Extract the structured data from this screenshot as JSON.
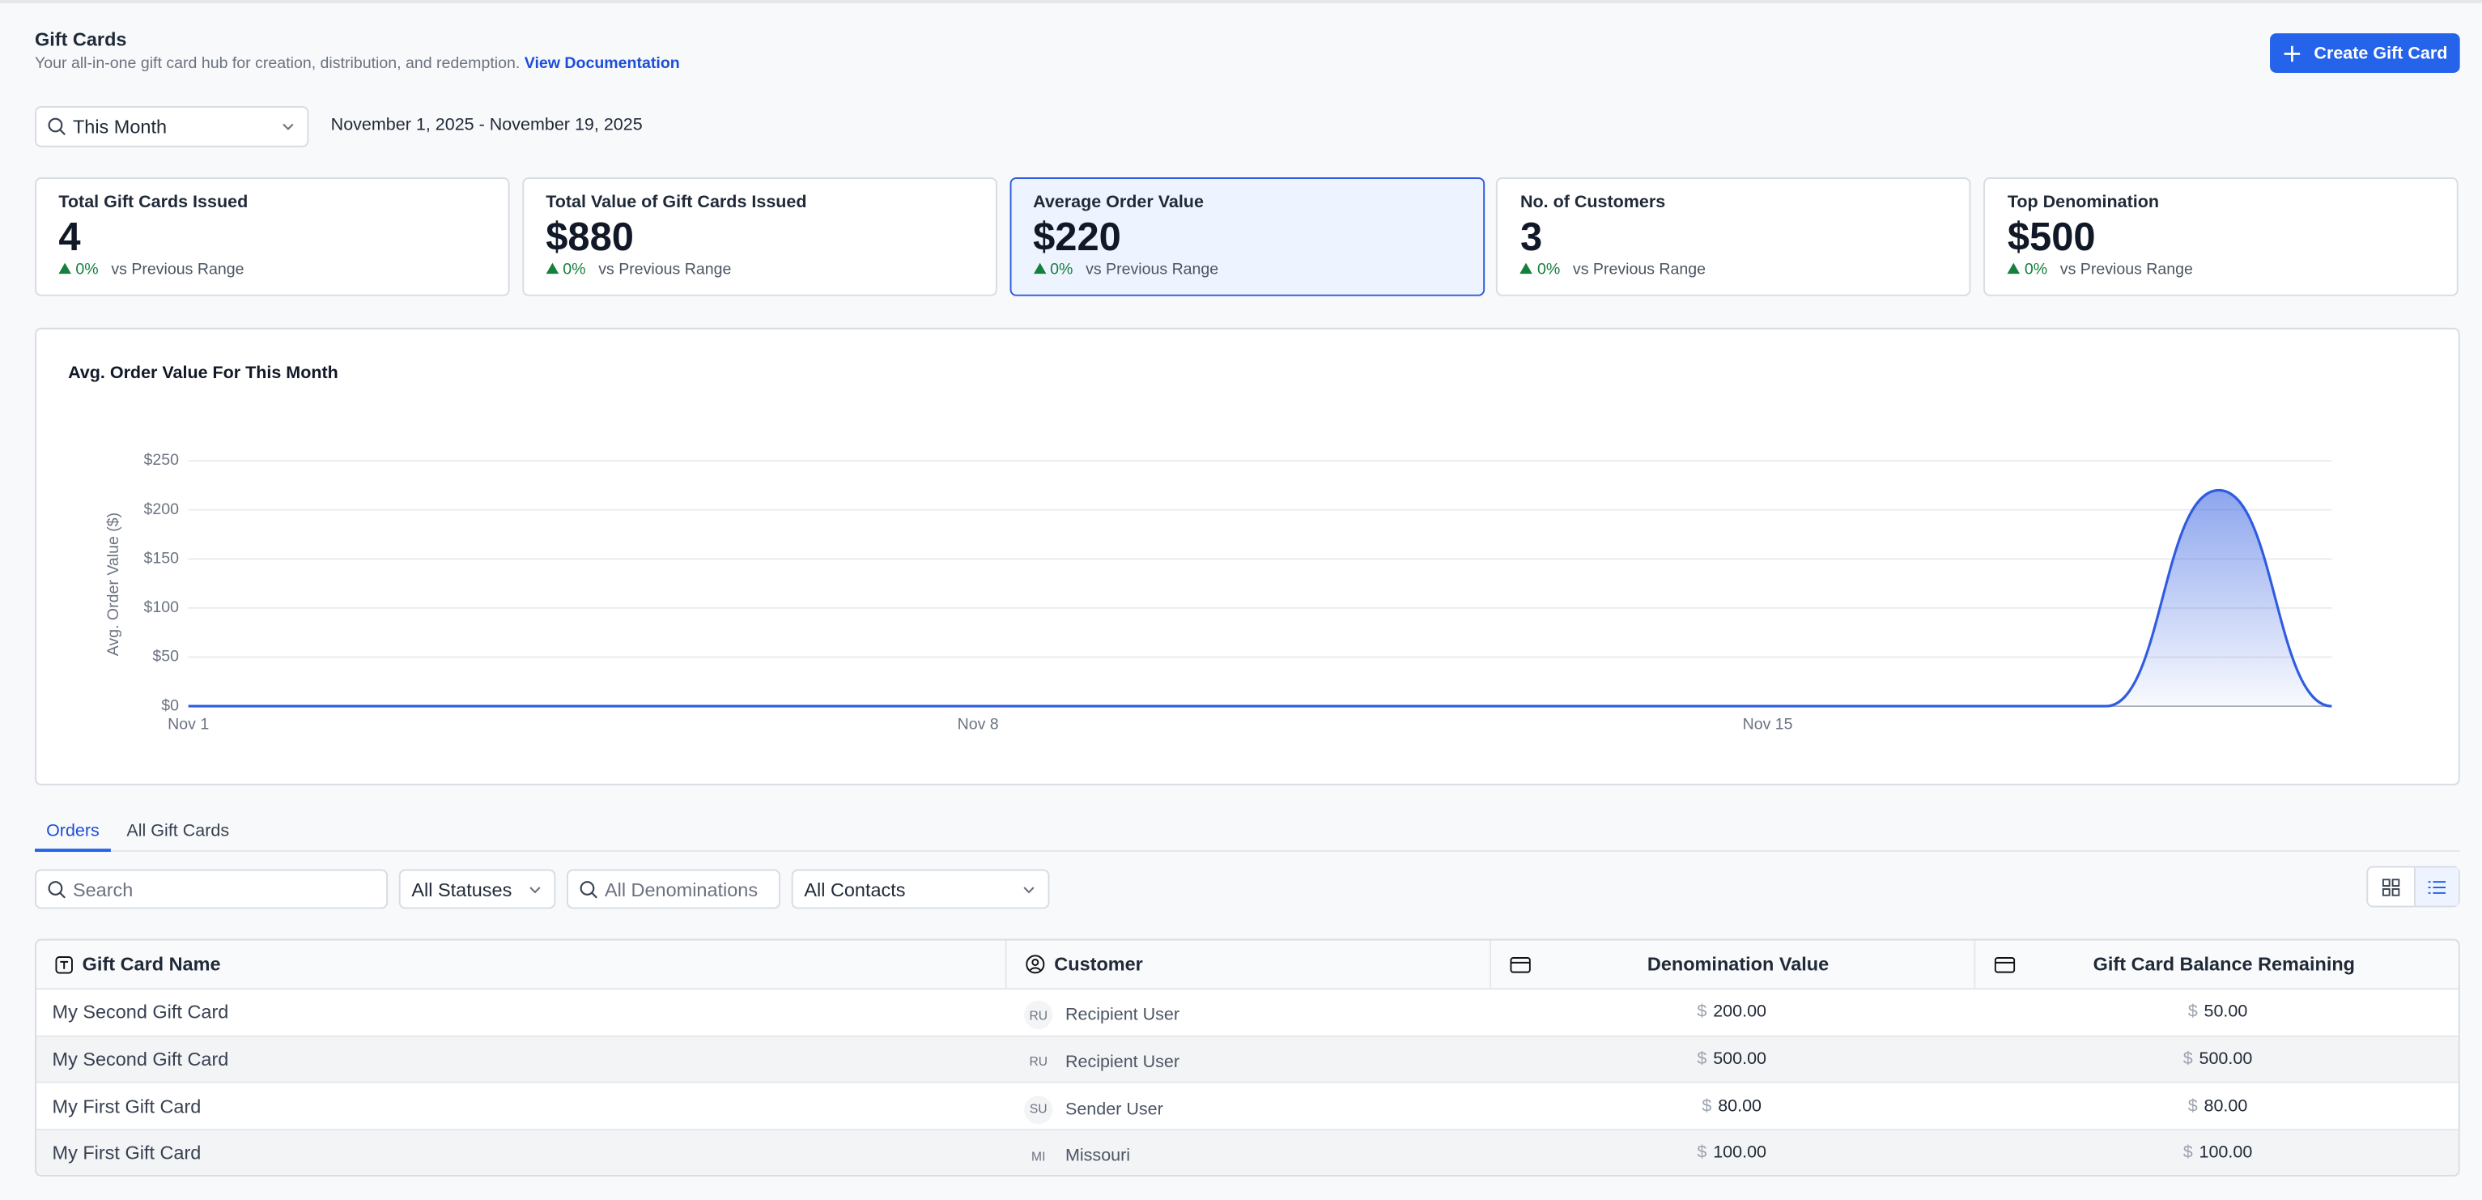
{
  "header": {
    "title": "Gift Cards",
    "subtitle": "Your all-in-one gift card hub for creation, distribution, and redemption.",
    "link": "View Documentation",
    "button": "Create Gift Card"
  },
  "range": {
    "select": "This Month",
    "dates": "November 1, 2025 - November 19, 2025"
  },
  "kpis": [
    {
      "label": "Total Gift Cards Issued",
      "value": "4",
      "change": "0%",
      "note": "vs Previous Range"
    },
    {
      "label": "Total Value of Gift Cards Issued",
      "value": "$880",
      "change": "0%",
      "note": "vs Previous Range"
    },
    {
      "label": "Average Order Value",
      "value": "$220",
      "change": "0%",
      "note": "vs Previous Range"
    },
    {
      "label": "No. of Customers",
      "value": "3",
      "change": "0%",
      "note": "vs Previous Range"
    },
    {
      "label": "Top Denomination",
      "value": "$500",
      "change": "0%",
      "note": "vs Previous Range"
    }
  ],
  "chart_data": {
    "type": "line",
    "title": "Avg. Order Value For This Month",
    "y_label": "Avg. Order Value ($)",
    "categories": [
      "Nov 1",
      null,
      null,
      null,
      null,
      null,
      null,
      "Nov 8",
      null,
      null,
      null,
      null,
      null,
      null,
      "Nov 15",
      null,
      null,
      null,
      null,
      null
    ],
    "series": [
      {
        "name": "Avg. Order Value",
        "color": "#2f5ce0",
        "values": [
          0,
          0,
          0,
          0,
          0,
          0,
          0,
          0,
          0,
          0,
          0,
          0,
          0,
          0,
          0,
          0,
          0,
          0,
          220,
          0
        ]
      }
    ],
    "ylim": [
      0,
      250
    ],
    "yticks": [
      {
        "value": 0,
        "label": "$0"
      },
      {
        "value": 50,
        "label": "$50"
      },
      {
        "value": 100,
        "label": "$100"
      },
      {
        "value": 150,
        "label": "$150"
      },
      {
        "value": 200,
        "label": "$200"
      },
      {
        "value": 250,
        "label": "$250"
      }
    ],
    "grid": true
  },
  "tabs": [
    "Orders",
    "All Gift Cards"
  ],
  "filters": {
    "search": "Search",
    "status": "All Statuses",
    "denomination": "All Denominations",
    "contacts": "All Contacts"
  },
  "table": {
    "columns": [
      "Gift Card Name",
      "Customer",
      "Denomination Value",
      "Gift Card Balance Remaining"
    ],
    "currency": "$",
    "rows": [
      {
        "name": "My Second Gift Card",
        "initials": "RU",
        "customer": "Recipient User",
        "denomination": "200.00",
        "balance": "50.00"
      },
      {
        "name": "My Second Gift Card",
        "initials": "RU",
        "customer": "Recipient User",
        "denomination": "500.00",
        "balance": "500.00"
      },
      {
        "name": "My First Gift Card",
        "initials": "SU",
        "customer": "Sender User",
        "denomination": "80.00",
        "balance": "80.00"
      },
      {
        "name": "My First Gift Card",
        "initials": "MI",
        "customer": "Missouri",
        "denomination": "100.00",
        "balance": "100.00"
      }
    ]
  }
}
